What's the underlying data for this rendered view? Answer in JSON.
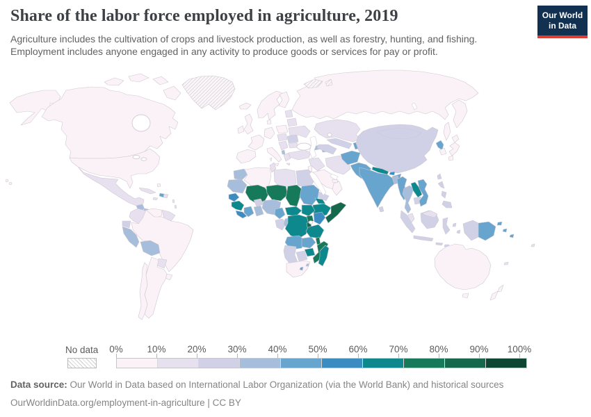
{
  "header": {
    "title": "Share of the labor force employed in agriculture, 2019",
    "subtitle": "Agriculture includes the cultivation of crops and livestock production, as well as forestry, hunting, and fishing. Employment includes anyone engaged in any activity to produce goods or services for pay or profit."
  },
  "logo": {
    "line1": "Our World",
    "line2": "in Data",
    "bg_color": "#12304f",
    "accent_color": "#dc3e32"
  },
  "legend": {
    "no_data_label": "No data",
    "ticks": [
      "0%",
      "10%",
      "20%",
      "30%",
      "40%",
      "50%",
      "60%",
      "70%",
      "80%",
      "90%",
      "100%"
    ],
    "band_colors": [
      "#fbf2f8",
      "#e7e0ef",
      "#d0d1e6",
      "#a6bddb",
      "#67a5ce",
      "#3b8cc1",
      "#0d898e",
      "#16795a",
      "#15684c",
      "#0d4633"
    ]
  },
  "footer": {
    "source_label": "Data source:",
    "source_text": " Our World in Data based on International Labor Organization (via the World Bank) and historical sources",
    "link_line": "OurWorldinData.org/employment-in-agriculture | CC BY"
  },
  "chart_data": {
    "type": "heatmap",
    "title": "Share of the labor force employed in agriculture, 2019",
    "legend_bins": [
      "0-10%",
      "10-20%",
      "20-30%",
      "30-40%",
      "40-50%",
      "50-60%",
      "60-70%",
      "70-80%",
      "80-90%",
      "90-100%"
    ],
    "note": "choropleth world map; values below are bin indices per region"
  },
  "map": {
    "stroke_color": "#cfc8d0",
    "ocean_color": "#ffffff",
    "regions": {
      "alaska": 0,
      "canada": 0,
      "usa": 0,
      "greenland": "nodata",
      "svalbard": "nodata",
      "mexico": 1,
      "guatemala": 3,
      "honduras-nicaragua": 3,
      "costa-rica-panama": 1,
      "cuba": 1,
      "jamaica": 1,
      "haiti": 4,
      "dominican-republic": 1,
      "bahamas": 0,
      "lesser-antilles": 1,
      "colombia": 1,
      "venezuela": 0,
      "guyanas": 1,
      "ecuador": 2,
      "peru": 3,
      "bolivia": 3,
      "brazil": 0,
      "paraguay": 1,
      "uruguay": 0,
      "argentina": 0,
      "chile": 0,
      "iceland": 0,
      "ireland": 0,
      "united-kingdom": 0,
      "norway-sweden": 0,
      "finland": 0,
      "denmark": 0,
      "baltics": 1,
      "poland": 0,
      "germany": 0,
      "france": 0,
      "iberia": 0,
      "italy": 0,
      "czech-hungary": 1,
      "balkans": 1,
      "albania": 3,
      "greece": 1,
      "romania": 2,
      "bulgaria": 1,
      "ukraine": 1,
      "belarus": 1,
      "russia": 0,
      "turkey": 1,
      "syria-iraq": 1,
      "jordan-israel": 0,
      "saudi-arabia": 0,
      "yemen": 2,
      "oman": 0,
      "uae": 0,
      "iran": 1,
      "georgia": 3,
      "azerbaijan": 3,
      "kazakhstan": 1,
      "uzbekistan": 2,
      "turkmenistan": 2,
      "kyrgyzstan-tajikistan": 4,
      "afghanistan": 4,
      "pakistan": 4,
      "india": 4,
      "nepal": 6,
      "bhutan": 5,
      "bangladesh": 3,
      "sri-lanka": 2,
      "china": 2,
      "mongolia": 2,
      "north-korea": 4,
      "south-korea": 0,
      "japan": 0,
      "taiwan": 2,
      "myanmar": 4,
      "thailand": 3,
      "laos": 6,
      "cambodia": 2,
      "vietnam": 4,
      "malaysia": 1,
      "sumatra": 2,
      "java": 2,
      "borneo": 2,
      "borneo-malaysia": 1,
      "sulawesi": 2,
      "lesser-sunda": 2,
      "moluccas": 2,
      "west-papua": 2,
      "papua-new-guinea": 4,
      "png-islands": 4,
      "solomon-islands": 4,
      "fiji": 1,
      "new-caledonia": 1,
      "philippines": 2,
      "australia": 0,
      "tasmania": 0,
      "new-zealand": 0,
      "hawaii": 0,
      "morocco": 3,
      "western-sahara-mauritania": 3,
      "algeria": 0,
      "tunisia": 1,
      "libya": 1,
      "egypt": 2,
      "mali": 7,
      "senegal": 5,
      "guinea": 6,
      "sierra-leone-liberia": 5,
      "cote-divoire": 4,
      "burkina-faso": 2,
      "ghana-togo-benin": 3,
      "niger": 7,
      "nigeria": 3,
      "chad": 7,
      "sudan": 4,
      "eritrea": 6,
      "ethiopia": 6,
      "somalia": 8,
      "cameroon": 4,
      "central-african-republic": 6,
      "south-sudan": 6,
      "gabon": 2,
      "congo": 3,
      "dr-congo": 6,
      "uganda": 7,
      "kenya": 5,
      "rwanda-burundi": 8,
      "tanzania": 6,
      "angola": 4,
      "zambia": 4,
      "malawi": 7,
      "mozambique": 7,
      "zimbabwe": 6,
      "botswana": 2,
      "namibia": 2,
      "south-africa": 0,
      "lesotho": 4,
      "swaziland": 3,
      "madagascar": 6
    }
  }
}
